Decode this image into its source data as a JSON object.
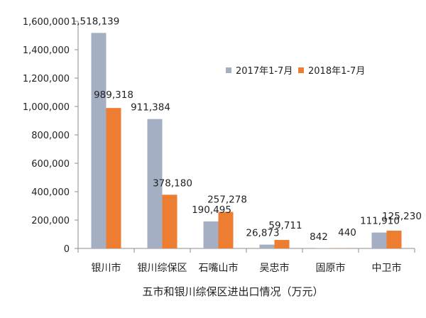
{
  "chart_data": {
    "type": "bar",
    "title": "五市和银川综保区进出口情况（万元）",
    "categories": [
      "银川市",
      "银川综保区",
      "石嘴山市",
      "吴忠市",
      "固原市",
      "中卫市"
    ],
    "series": [
      {
        "name": "2017年1-7月",
        "color": "#A5AFC4",
        "values": [
          1518139,
          911384,
          190495,
          26873,
          842,
          111910
        ]
      },
      {
        "name": "2018年1-7月",
        "color": "#ED7D31",
        "values": [
          989318,
          378180,
          257278,
          59711,
          440,
          125230
        ]
      }
    ],
    "data_labels": [
      [
        "1,518,139",
        "911,384",
        "190,495",
        "26,873",
        "842",
        "111,910"
      ],
      [
        "989,318",
        "378,180",
        "257,278",
        "59,711",
        "440",
        "125,230"
      ]
    ],
    "y_ticks": [
      {
        "value": 0,
        "label": "0"
      },
      {
        "value": 200000,
        "label": "200,000"
      },
      {
        "value": 400000,
        "label": "400,000"
      },
      {
        "value": 600000,
        "label": "600,000"
      },
      {
        "value": 800000,
        "label": "800,000"
      },
      {
        "value": 1000000,
        "label": "1,000,000"
      },
      {
        "value": 1200000,
        "label": "1,200,000"
      },
      {
        "value": 1400000,
        "label": "1,400,000"
      },
      {
        "value": 1600000,
        "label": "1,600,000"
      }
    ],
    "ylim": [
      0,
      1600000
    ],
    "grid": false,
    "legend_position": "top-right"
  }
}
